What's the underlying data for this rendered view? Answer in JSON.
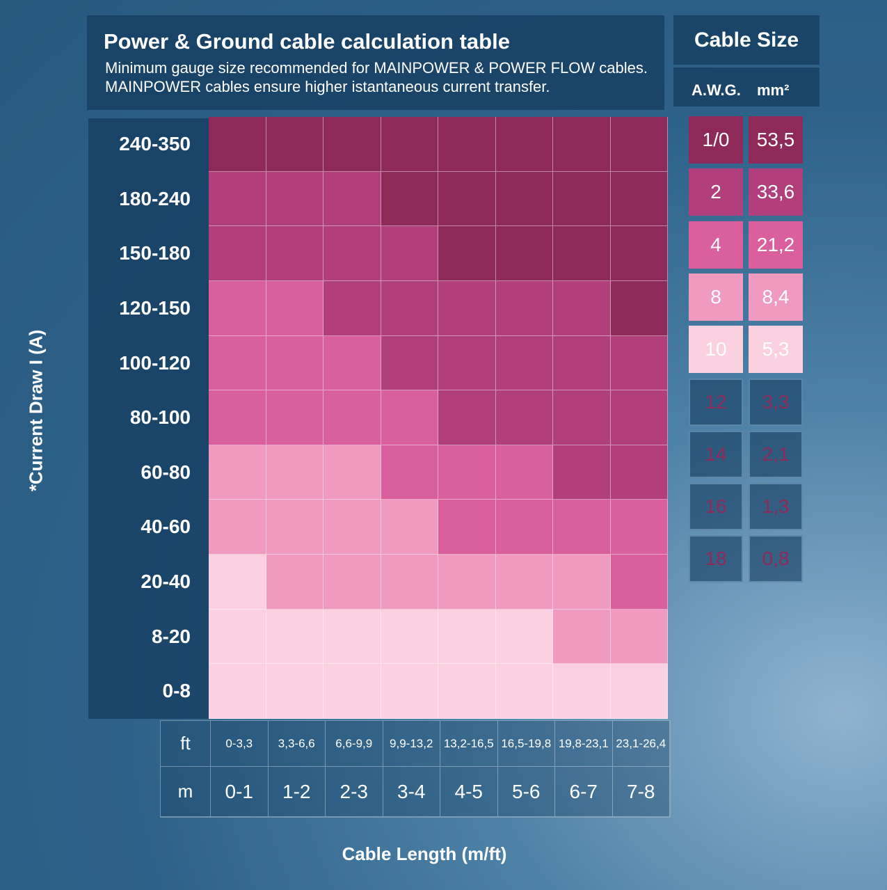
{
  "header": {
    "title": "Power & Ground cable calculation table",
    "subtitle": "Minimum gauge size recommended for MAINPOWER & POWER FLOW cables. MAINPOWER cables ensure higher istantaneous current transfer."
  },
  "cable_size": {
    "title": "Cable Size",
    "awg_label": "A.W.G.",
    "mm_label": "mm²",
    "rows": [
      {
        "awg": "1/0",
        "mm2": "53,5",
        "color": "#8e2a5a",
        "text": "#ffffff"
      },
      {
        "awg": "2",
        "mm2": "33,6",
        "color": "#b13f7c",
        "text": "#ffffff"
      },
      {
        "awg": "4",
        "mm2": "21,2",
        "color": "#d9609d",
        "text": "#ffffff"
      },
      {
        "awg": "8",
        "mm2": "8,4",
        "color": "#f09ac0",
        "text": "#ffffff"
      },
      {
        "awg": "10",
        "mm2": "5,3",
        "color": "#fbd0e0",
        "text": "#ffffff"
      },
      {
        "awg": "12",
        "mm2": "3,3",
        "color": "none",
        "text": "#8e2a5a"
      },
      {
        "awg": "14",
        "mm2": "2,1",
        "color": "none",
        "text": "#8e2a5a"
      },
      {
        "awg": "16",
        "mm2": "1,3",
        "color": "none",
        "text": "#8e2a5a"
      },
      {
        "awg": "18",
        "mm2": "0,8",
        "color": "none",
        "text": "#8e2a5a"
      }
    ]
  },
  "chart_data": {
    "type": "heatmap",
    "xlabel": "Cable Length (m/ft)",
    "ylabel": "*Current Draw I (A)",
    "x_ft_label": "ft",
    "x_m_label": "m",
    "x_ft": [
      "0-3,3",
      "3,3-6,6",
      "6,6-9,9",
      "9,9-13,2",
      "13,2-16,5",
      "16,5-19,8",
      "19,8-23,1",
      "23,1-26,4"
    ],
    "x_m": [
      "0-1",
      "1-2",
      "2-3",
      "3-4",
      "4-5",
      "5-6",
      "6-7",
      "7-8"
    ],
    "y": [
      "240-350",
      "180-240",
      "150-180",
      "120-150",
      "100-120",
      "80-100",
      "60-80",
      "40-60",
      "20-40",
      "8-20",
      "0-8"
    ],
    "values_awg": [
      [
        "1/0",
        "1/0",
        "1/0",
        "1/0",
        "1/0",
        "1/0",
        "1/0",
        "1/0"
      ],
      [
        "2",
        "2",
        "2",
        "1/0",
        "1/0",
        "1/0",
        "1/0",
        "1/0"
      ],
      [
        "2",
        "2",
        "2",
        "2",
        "1/0",
        "1/0",
        "1/0",
        "1/0"
      ],
      [
        "4",
        "4",
        "2",
        "2",
        "2",
        "2",
        "2",
        "1/0"
      ],
      [
        "4",
        "4",
        "4",
        "2",
        "2",
        "2",
        "2",
        "2"
      ],
      [
        "4",
        "4",
        "4",
        "4",
        "2",
        "2",
        "2",
        "2"
      ],
      [
        "8",
        "8",
        "8",
        "4",
        "4",
        "4",
        "2",
        "2"
      ],
      [
        "8",
        "8",
        "8",
        "8",
        "4",
        "4",
        "4",
        "4"
      ],
      [
        "10",
        "8",
        "8",
        "8",
        "8",
        "8",
        "8",
        "4"
      ],
      [
        "10",
        "10",
        "10",
        "10",
        "10",
        "10",
        "8",
        "8"
      ],
      [
        "10",
        "10",
        "10",
        "10",
        "10",
        "10",
        "10",
        "10"
      ]
    ]
  }
}
